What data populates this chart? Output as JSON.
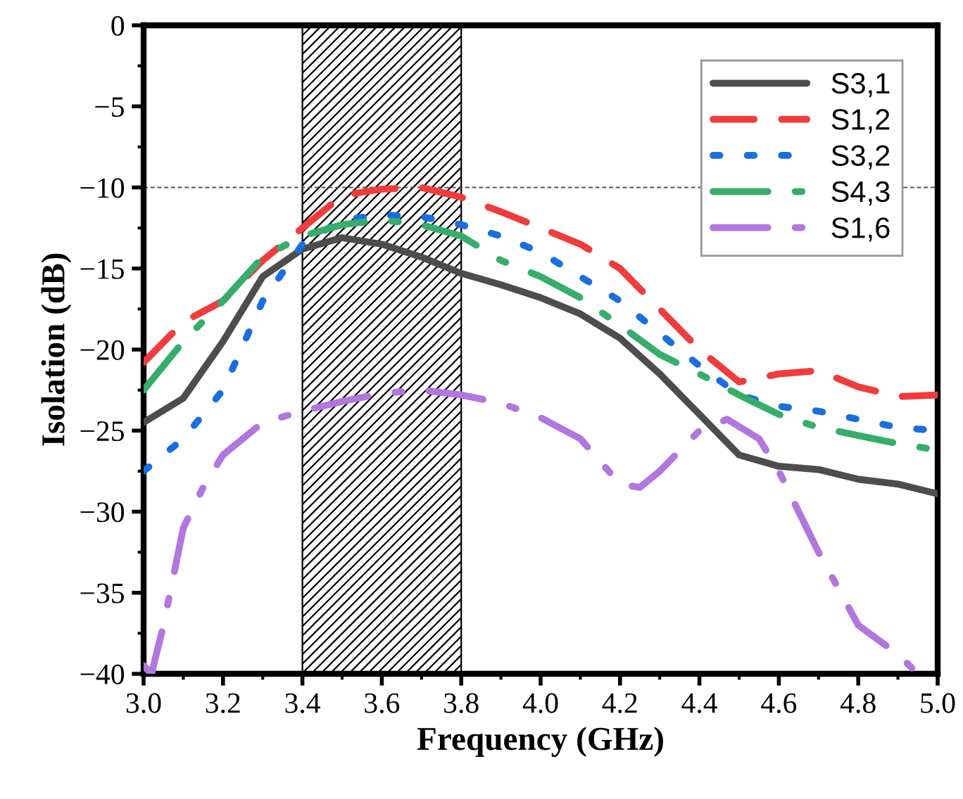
{
  "chart_data": {
    "type": "line",
    "xlabel": "Frequency (GHz)",
    "ylabel": "Isolation (dB)",
    "xlim": [
      3.0,
      5.0
    ],
    "ylim": [
      -40,
      0
    ],
    "xticks": [
      {
        "value": 3,
        "label": "3.0"
      },
      3.2,
      3.4,
      3.6,
      3.8,
      {
        "value": 4,
        "label": "4.0"
      },
      4.2,
      4.4,
      4.6,
      4.8,
      {
        "value": 5,
        "label": "5.0"
      }
    ],
    "yticks": [
      0,
      -5,
      -10,
      -15,
      -20,
      -25,
      -30,
      -35,
      -40
    ],
    "legend": "top right",
    "grid": false,
    "ref_lines": [
      {
        "axis": "y",
        "value": -10,
        "color": "#555555",
        "line_style": "dashed"
      }
    ],
    "bands": [
      {
        "axis": "x",
        "from": 3.4,
        "to": 3.8,
        "color": "#000000"
      }
    ],
    "series": [
      {
        "name": "S3,1",
        "color": "#4d4d4d",
        "line_style": "solid",
        "x": [
          3.0,
          3.1,
          3.2,
          3.3,
          3.4,
          3.5,
          3.6,
          3.7,
          3.8,
          3.9,
          4.0,
          4.1,
          4.2,
          4.3,
          4.4,
          4.5,
          4.6,
          4.7,
          4.8,
          4.9,
          5.0
        ],
        "values": [
          -24.5,
          -23,
          -19.5,
          -15.5,
          -13.8,
          -13.1,
          -13.5,
          -14.3,
          -15.3,
          -16.0,
          -16.8,
          -17.8,
          -19.3,
          -21.5,
          -24,
          -26.5,
          -27.2,
          -27.4,
          -28.0,
          -28.3,
          -28.9
        ]
      },
      {
        "name": "S1,2",
        "color": "#f03c3c",
        "line_style": "dashed",
        "x": [
          3.0,
          3.1,
          3.2,
          3.3,
          3.4,
          3.5,
          3.6,
          3.7,
          3.8,
          3.9,
          4.0,
          4.1,
          4.2,
          4.3,
          4.4,
          4.5,
          4.6,
          4.7,
          4.8,
          4.9,
          5.0
        ],
        "values": [
          -20.8,
          -18.3,
          -17,
          -14.5,
          -12.5,
          -10.5,
          -10.1,
          -10,
          -10.6,
          -11.5,
          -12.5,
          -13.5,
          -15,
          -17.5,
          -20,
          -22,
          -21.5,
          -21.3,
          -22.3,
          -22.9,
          -22.8
        ]
      },
      {
        "name": "S3,2",
        "color": "#1a6fdf",
        "line_style": "dotted",
        "x": [
          3.0,
          3.1,
          3.2,
          3.3,
          3.4,
          3.5,
          3.6,
          3.7,
          3.8,
          3.9,
          4.0,
          4.1,
          4.2,
          4.3,
          4.4,
          4.5,
          4.6,
          4.7,
          4.8,
          4.9,
          5.0
        ],
        "values": [
          -27.5,
          -25.5,
          -22.5,
          -17,
          -13.5,
          -12,
          -11.7,
          -11.8,
          -12.3,
          -13.0,
          -14.0,
          -15.5,
          -17.0,
          -19,
          -21,
          -22.8,
          -23.5,
          -23.8,
          -24.3,
          -24.8,
          -25.0
        ]
      },
      {
        "name": "S4,3",
        "color": "#37ad6b",
        "line_style": "dashdot",
        "x": [
          3.0,
          3.1,
          3.2,
          3.3,
          3.4,
          3.5,
          3.6,
          3.7,
          3.8,
          3.9,
          4.0,
          4.1,
          4.2,
          4.3,
          4.4,
          4.5,
          4.6,
          4.7,
          4.8,
          4.9,
          5.0
        ],
        "values": [
          -22.5,
          -19.5,
          -17,
          -14.3,
          -13,
          -12.3,
          -12,
          -12.3,
          -13,
          -14.5,
          -15.5,
          -16.8,
          -18.5,
          -20.3,
          -21.5,
          -22.8,
          -24,
          -24.8,
          -25.3,
          -25.8,
          -26.2
        ]
      },
      {
        "name": "S1,6",
        "color": "#b177de",
        "line_style": "dashdot",
        "x": [
          3.0,
          3.02,
          3.05,
          3.1,
          3.15,
          3.2,
          3.3,
          3.4,
          3.5,
          3.6,
          3.7,
          3.8,
          3.9,
          4.0,
          4.1,
          4.2,
          4.25,
          4.3,
          4.4,
          4.47,
          4.55,
          4.6,
          4.7,
          4.8,
          4.9,
          4.95
        ],
        "values": [
          -39.5,
          -40,
          -37,
          -31,
          -28.5,
          -26.5,
          -24.5,
          -23.8,
          -23.2,
          -22.7,
          -22.5,
          -22.8,
          -23.3,
          -24.2,
          -25.5,
          -28.3,
          -28.5,
          -27.5,
          -25,
          -24.3,
          -25.5,
          -27.5,
          -32.5,
          -37,
          -38.8,
          -40
        ]
      }
    ]
  }
}
